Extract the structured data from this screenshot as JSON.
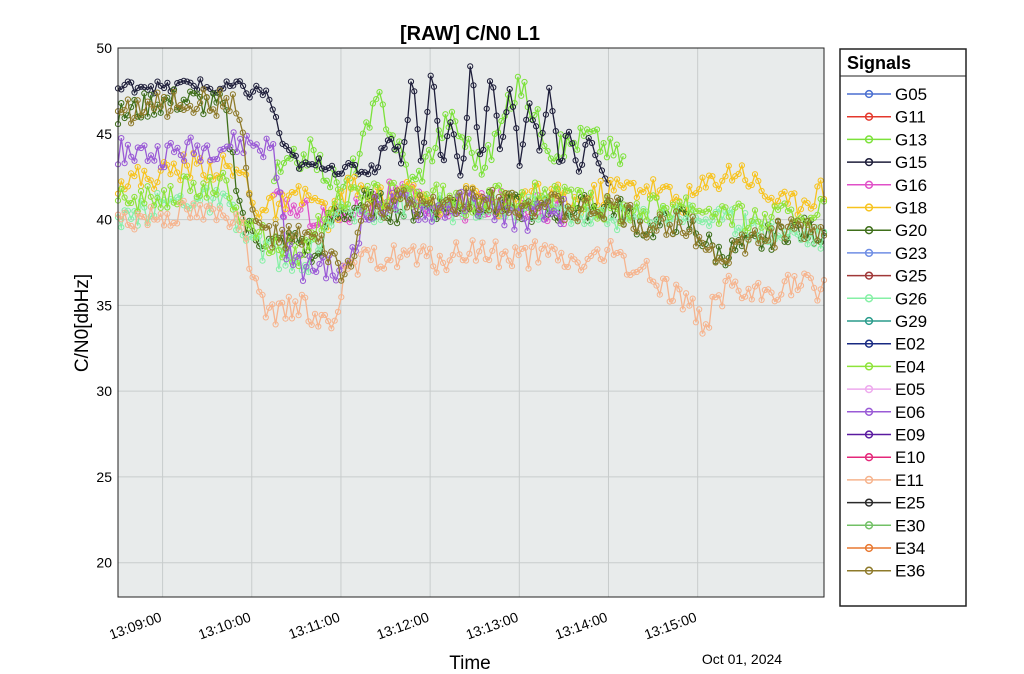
{
  "chart_data": {
    "type": "line",
    "title": "[RAW] C/N0 L1",
    "xlabel": "Time",
    "ylabel": "C/N0[dbHz]",
    "date_label": "Oct 01, 2024",
    "xlim": [
      "13:08:30",
      "13:16:25"
    ],
    "ylim": [
      18,
      50
    ],
    "yticks": [
      20,
      25,
      30,
      35,
      40,
      45,
      50
    ],
    "xticks": [
      "13:09:00",
      "13:10:00",
      "13:11:00",
      "13:12:00",
      "13:13:00",
      "13:14:00",
      "13:15:00"
    ],
    "grid": true,
    "legend_title": "Signals",
    "legend_position": "outside-right",
    "series": [
      {
        "name": "G05",
        "color": "#4a6fd0",
        "start": "13:08:30",
        "end": "13:08:30",
        "points": []
      },
      {
        "name": "G11",
        "color": "#e4382c",
        "start": "13:08:30",
        "end": "13:08:30",
        "points": []
      },
      {
        "name": "G13",
        "color": "#7ce23a",
        "start": "13:10:15",
        "end": "13:14:10",
        "points": [
          [
            0,
            42.5
          ],
          [
            0.1,
            44
          ],
          [
            0.2,
            41.5
          ],
          [
            0.3,
            47
          ],
          [
            0.4,
            42
          ],
          [
            0.5,
            46
          ],
          [
            0.6,
            43
          ],
          [
            0.7,
            48
          ],
          [
            0.8,
            44
          ],
          [
            0.9,
            45
          ],
          [
            1,
            43.5
          ]
        ]
      },
      {
        "name": "G15",
        "color": "#1e1e3a",
        "start": "13:08:30",
        "end": "13:14:00",
        "points": [
          [
            0,
            47.6
          ],
          [
            0.05,
            47.9
          ],
          [
            0.1,
            47.6
          ],
          [
            0.15,
            48
          ],
          [
            0.2,
            47.5
          ],
          [
            0.24,
            47.8
          ],
          [
            0.27,
            47.4
          ],
          [
            0.29,
            47.6
          ],
          [
            0.31,
            47
          ],
          [
            0.34,
            44
          ],
          [
            0.38,
            43
          ],
          [
            0.42,
            43.3
          ],
          [
            0.46,
            42.8
          ],
          [
            0.48,
            43
          ],
          [
            0.5,
            42.8
          ],
          [
            0.53,
            43.2
          ],
          [
            0.55,
            45
          ],
          [
            0.58,
            43.5
          ],
          [
            0.6,
            48.5
          ],
          [
            0.62,
            43
          ],
          [
            0.64,
            49
          ],
          [
            0.66,
            43
          ],
          [
            0.68,
            46
          ],
          [
            0.7,
            42
          ],
          [
            0.72,
            49.5
          ],
          [
            0.74,
            43
          ],
          [
            0.76,
            48.5
          ],
          [
            0.78,
            44
          ],
          [
            0.8,
            48
          ],
          [
            0.82,
            43
          ],
          [
            0.84,
            47
          ],
          [
            0.86,
            44
          ],
          [
            0.88,
            48
          ],
          [
            0.9,
            43
          ],
          [
            0.92,
            45.5
          ],
          [
            0.94,
            42.5
          ],
          [
            0.96,
            45
          ],
          [
            0.98,
            43
          ],
          [
            1,
            42.5
          ]
        ]
      },
      {
        "name": "G16",
        "color": "#e050c8",
        "start": "13:10:15",
        "end": "13:13:30",
        "points": [
          [
            0,
            41
          ],
          [
            0.2,
            40
          ],
          [
            0.4,
            41.5
          ],
          [
            0.6,
            40.5
          ],
          [
            0.8,
            41
          ],
          [
            1,
            40.5
          ]
        ]
      },
      {
        "name": "G18",
        "color": "#f7c31e",
        "start": "13:08:30",
        "end": "13:16:25",
        "points": [
          [
            0,
            42.3
          ],
          [
            0.05,
            42.5
          ],
          [
            0.1,
            43.2
          ],
          [
            0.15,
            43
          ],
          [
            0.18,
            42.5
          ],
          [
            0.2,
            40.5
          ],
          [
            0.24,
            40.8
          ],
          [
            0.27,
            41.5
          ],
          [
            0.3,
            40
          ],
          [
            0.33,
            42
          ],
          [
            0.36,
            41
          ],
          [
            0.4,
            41.5
          ],
          [
            0.45,
            41
          ],
          [
            0.5,
            41.3
          ],
          [
            0.55,
            40.8
          ],
          [
            0.6,
            41.5
          ],
          [
            0.65,
            41
          ],
          [
            0.7,
            41.8
          ],
          [
            0.75,
            42
          ],
          [
            0.8,
            41
          ],
          [
            0.85,
            42.5
          ],
          [
            0.88,
            43
          ],
          [
            0.92,
            41.5
          ],
          [
            0.95,
            40.8
          ],
          [
            1,
            41.8
          ]
        ]
      },
      {
        "name": "G20",
        "color": "#3f6f1a",
        "start": "13:08:30",
        "end": "13:16:25",
        "points": [
          [
            0,
            46
          ],
          [
            0.05,
            46.8
          ],
          [
            0.1,
            47
          ],
          [
            0.15,
            46.5
          ],
          [
            0.18,
            39.5
          ],
          [
            0.22,
            38.5
          ],
          [
            0.26,
            38.8
          ],
          [
            0.28,
            37.5
          ],
          [
            0.3,
            40
          ],
          [
            0.35,
            41
          ],
          [
            0.4,
            40.5
          ],
          [
            0.5,
            41
          ],
          [
            0.6,
            40.5
          ],
          [
            0.7,
            40.8
          ],
          [
            0.75,
            39.5
          ],
          [
            0.8,
            40
          ],
          [
            0.85,
            38
          ],
          [
            0.9,
            38.5
          ],
          [
            0.95,
            39.5
          ],
          [
            1,
            39.2
          ]
        ]
      },
      {
        "name": "G23",
        "color": "#6f8ee4",
        "start": "13:08:30",
        "end": "13:08:30",
        "points": []
      },
      {
        "name": "G25",
        "color": "#a03838",
        "start": "13:08:30",
        "end": "13:08:30",
        "points": []
      },
      {
        "name": "G26",
        "color": "#86f0a6",
        "start": "13:08:30",
        "end": "13:16:25",
        "points": [
          [
            0,
            39.5
          ],
          [
            0.05,
            40.8
          ],
          [
            0.1,
            41.3
          ],
          [
            0.15,
            41
          ],
          [
            0.18,
            39
          ],
          [
            0.22,
            38
          ],
          [
            0.26,
            37
          ],
          [
            0.3,
            40
          ],
          [
            0.4,
            41
          ],
          [
            0.5,
            40.5
          ],
          [
            0.6,
            40.8
          ],
          [
            0.7,
            40
          ],
          [
            0.8,
            40.5
          ],
          [
            0.9,
            39.5
          ],
          [
            1,
            39
          ]
        ]
      },
      {
        "name": "G29",
        "color": "#2a9c8c",
        "start": "13:08:30",
        "end": "13:08:30",
        "points": []
      },
      {
        "name": "E02",
        "color": "#182a82",
        "start": "13:08:30",
        "end": "13:08:30",
        "points": []
      },
      {
        "name": "E04",
        "color": "#8ee43a",
        "start": "13:08:30",
        "end": "13:16:25",
        "points": [
          [
            0,
            41
          ],
          [
            0.05,
            41.3
          ],
          [
            0.1,
            41.8
          ],
          [
            0.15,
            42
          ],
          [
            0.18,
            40
          ],
          [
            0.22,
            38.5
          ],
          [
            0.26,
            38
          ],
          [
            0.3,
            41
          ],
          [
            0.4,
            41.5
          ],
          [
            0.5,
            41
          ],
          [
            0.6,
            41.5
          ],
          [
            0.7,
            40.5
          ],
          [
            0.8,
            41
          ],
          [
            0.9,
            40
          ],
          [
            1,
            40.5
          ]
        ]
      },
      {
        "name": "E05",
        "color": "#eeaaee",
        "start": "13:08:30",
        "end": "13:08:30",
        "points": []
      },
      {
        "name": "E06",
        "color": "#9a5ad6",
        "start": "13:08:30",
        "end": "13:13:30",
        "points": [
          [
            0,
            44
          ],
          [
            0.1,
            43.8
          ],
          [
            0.2,
            44.2
          ],
          [
            0.3,
            44.5
          ],
          [
            0.35,
            44
          ],
          [
            0.38,
            38
          ],
          [
            0.42,
            37
          ],
          [
            0.46,
            37.5
          ],
          [
            0.5,
            36.5
          ],
          [
            0.55,
            40
          ],
          [
            0.6,
            41
          ],
          [
            0.7,
            40.5
          ],
          [
            0.8,
            41
          ],
          [
            0.9,
            40
          ],
          [
            1,
            40.5
          ]
        ]
      },
      {
        "name": "E09",
        "color": "#5a1aa0",
        "start": "13:08:30",
        "end": "13:08:30",
        "points": []
      },
      {
        "name": "E10",
        "color": "#e4287a",
        "start": "13:08:30",
        "end": "13:08:30",
        "points": []
      },
      {
        "name": "E11",
        "color": "#f6b48e",
        "start": "13:08:30",
        "end": "13:16:25",
        "points": [
          [
            0,
            40
          ],
          [
            0.05,
            40.3
          ],
          [
            0.1,
            40.5
          ],
          [
            0.15,
            40.2
          ],
          [
            0.17,
            40.5
          ],
          [
            0.2,
            35
          ],
          [
            0.22,
            34.2
          ],
          [
            0.25,
            35
          ],
          [
            0.28,
            34.5
          ],
          [
            0.3,
            33.8
          ],
          [
            0.32,
            36.5
          ],
          [
            0.35,
            37.5
          ],
          [
            0.4,
            38
          ],
          [
            0.45,
            37.5
          ],
          [
            0.5,
            38.2
          ],
          [
            0.55,
            37.8
          ],
          [
            0.6,
            38
          ],
          [
            0.65,
            37.5
          ],
          [
            0.7,
            38
          ],
          [
            0.75,
            36.8
          ],
          [
            0.8,
            35.5
          ],
          [
            0.83,
            34
          ],
          [
            0.86,
            36
          ],
          [
            0.9,
            35.5
          ],
          [
            0.95,
            36.2
          ],
          [
            1,
            36
          ]
        ]
      },
      {
        "name": "E25",
        "color": "#2a2a2a",
        "start": "13:08:30",
        "end": "13:08:30",
        "points": []
      },
      {
        "name": "E30",
        "color": "#72c066",
        "start": "13:08:30",
        "end": "13:08:30",
        "points": []
      },
      {
        "name": "E34",
        "color": "#e87830",
        "start": "13:08:30",
        "end": "13:08:30",
        "points": []
      },
      {
        "name": "E36",
        "color": "#8e7a2a",
        "start": "13:08:30",
        "end": "13:16:25",
        "points": [
          [
            0,
            46.2
          ],
          [
            0.05,
            46.6
          ],
          [
            0.1,
            46.9
          ],
          [
            0.15,
            46.8
          ],
          [
            0.17,
            47
          ],
          [
            0.19,
            40
          ],
          [
            0.23,
            38.8
          ],
          [
            0.27,
            39
          ],
          [
            0.3,
            38
          ],
          [
            0.32,
            36.5
          ],
          [
            0.35,
            40.5
          ],
          [
            0.4,
            41
          ],
          [
            0.45,
            40.5
          ],
          [
            0.5,
            41.2
          ],
          [
            0.55,
            40.8
          ],
          [
            0.6,
            41
          ],
          [
            0.65,
            40.5
          ],
          [
            0.7,
            40.8
          ],
          [
            0.75,
            39.5
          ],
          [
            0.8,
            40
          ],
          [
            0.85,
            37.8
          ],
          [
            0.88,
            38.5
          ],
          [
            0.92,
            39
          ],
          [
            0.96,
            39.5
          ],
          [
            1,
            39.3
          ]
        ]
      }
    ]
  }
}
